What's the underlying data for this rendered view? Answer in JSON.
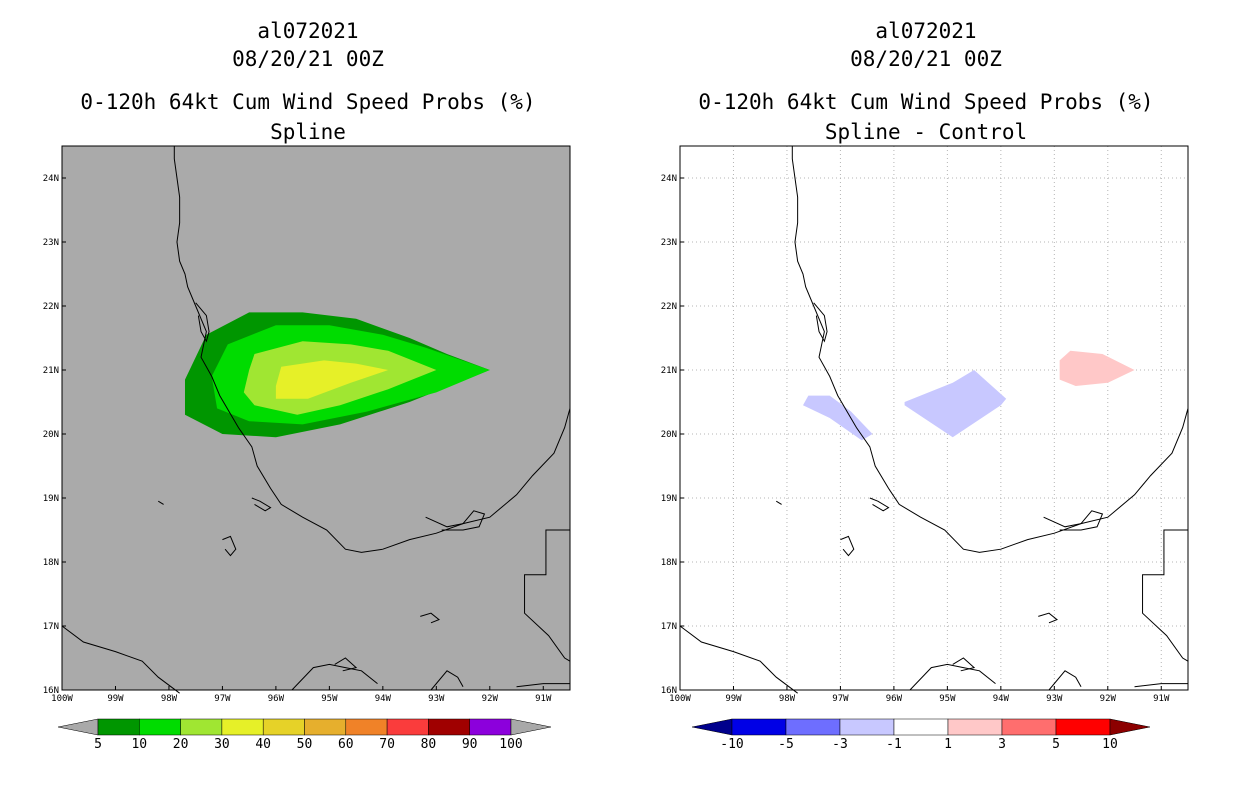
{
  "panels": [
    {
      "title_lines": [
        "al072021",
        "08/20/21 00Z",
        "0-120h 64kt Cum Wind Speed Probs (%)",
        "Spline"
      ],
      "colorbar": {
        "labels": [
          "5",
          "10",
          "20",
          "30",
          "40",
          "50",
          "60",
          "70",
          "80",
          "90",
          "100"
        ],
        "colors": [
          "#009600",
          "#00dc00",
          "#a0e632",
          "#e6f028",
          "#e6d228",
          "#e6af2d",
          "#f08228",
          "#fa3c3c",
          "#a00000",
          "#8c00dc"
        ],
        "end_color": "#a9a9a9"
      }
    },
    {
      "title_lines": [
        "al072021",
        "08/20/21 00Z",
        "0-120h 64kt Cum Wind Speed Probs (%)",
        "Spline - Control"
      ],
      "colorbar": {
        "labels": [
          "-10",
          "-5",
          "-3",
          "-1",
          "1",
          "3",
          "5",
          "10"
        ],
        "colors": [
          "#0000e6",
          "#6e6eff",
          "#c8c8ff",
          "#ffffff",
          "#ffc8c8",
          "#ff6e6e",
          "#ff0000"
        ],
        "end_color_low": "#00008c",
        "end_color_high": "#8c0000"
      }
    }
  ],
  "axes": {
    "lon_labels": [
      "100W",
      "99W",
      "98W",
      "97W",
      "96W",
      "95W",
      "94W",
      "93W",
      "92W",
      "91W"
    ],
    "lat_labels": [
      "16N",
      "17N",
      "18N",
      "19N",
      "20N",
      "21N",
      "22N",
      "23N",
      "24N"
    ],
    "lon_range": [
      -100,
      -90.5
    ],
    "lat_range": [
      16,
      24.5
    ]
  },
  "chart_data": [
    {
      "type": "heatmap",
      "title": "al072021 08/20/21 00Z 0-120h 64kt Cum Wind Speed Probs (%) Spline",
      "background_color": "#aaaaaa",
      "levels": [
        5,
        10,
        20,
        30,
        40,
        50,
        60,
        70,
        80,
        90,
        100
      ],
      "contours": [
        {
          "level": 5,
          "color": "#009600",
          "lon": [
            -97.3,
            -96.5,
            -95.5,
            -94.5,
            -93.5,
            -92.8,
            -92.0,
            -93.5,
            -94.8,
            -96.0,
            -97.0,
            -97.7,
            -97.7
          ],
          "lat": [
            21.55,
            21.9,
            21.9,
            21.8,
            21.5,
            21.25,
            21.0,
            20.5,
            20.15,
            19.95,
            20.0,
            20.3,
            20.85
          ]
        },
        {
          "level": 10,
          "color": "#00dc00",
          "lon": [
            -96.9,
            -96.0,
            -95.0,
            -94.0,
            -93.2,
            -92.0,
            -93.0,
            -94.3,
            -95.5,
            -96.5,
            -97.1,
            -97.2
          ],
          "lat": [
            21.4,
            21.7,
            21.7,
            21.55,
            21.35,
            21.0,
            20.65,
            20.35,
            20.15,
            20.2,
            20.4,
            20.9
          ]
        },
        {
          "level": 20,
          "color": "#a0e632",
          "lon": [
            -96.4,
            -95.5,
            -94.6,
            -93.9,
            -93.0,
            -93.9,
            -94.8,
            -95.6,
            -96.4,
            -96.6,
            -96.5
          ],
          "lat": [
            21.25,
            21.45,
            21.4,
            21.3,
            21.0,
            20.7,
            20.45,
            20.3,
            20.45,
            20.65,
            21.0
          ]
        },
        {
          "level": 30,
          "color": "#e6f028",
          "lon": [
            -95.9,
            -95.1,
            -94.5,
            -93.9,
            -94.6,
            -95.4,
            -96.0,
            -96.0
          ],
          "lat": [
            21.05,
            21.15,
            21.1,
            21.0,
            20.8,
            20.55,
            20.55,
            20.75
          ]
        }
      ]
    },
    {
      "type": "heatmap",
      "title": "al072021 08/20/21 00Z 0-120h 64kt Cum Wind Speed Probs (%) Spline - Control",
      "background_color": "#ffffff",
      "levels": [
        -10,
        -5,
        -3,
        -1,
        1,
        3,
        5,
        10
      ],
      "contours": [
        {
          "level": -3,
          "color": "#c8c8ff",
          "lon": [
            -97.6,
            -97.2,
            -96.8,
            -96.4,
            -96.6,
            -97.2,
            -97.7
          ],
          "lat": [
            20.6,
            20.6,
            20.35,
            20.0,
            19.9,
            20.25,
            20.45
          ]
        },
        {
          "level": -3,
          "color": "#c8c8ff",
          "lon": [
            -95.8,
            -94.9,
            -94.5,
            -93.9,
            -94.0,
            -94.9,
            -95.8
          ],
          "lat": [
            20.5,
            20.8,
            21.0,
            20.55,
            20.45,
            19.95,
            20.45
          ]
        },
        {
          "level": 3,
          "color": "#ffc8c8",
          "lon": [
            -92.9,
            -92.7,
            -92.1,
            -91.5,
            -92.0,
            -92.6,
            -92.9
          ],
          "lat": [
            21.15,
            21.3,
            21.25,
            21.0,
            20.8,
            20.75,
            20.85
          ]
        }
      ]
    }
  ]
}
